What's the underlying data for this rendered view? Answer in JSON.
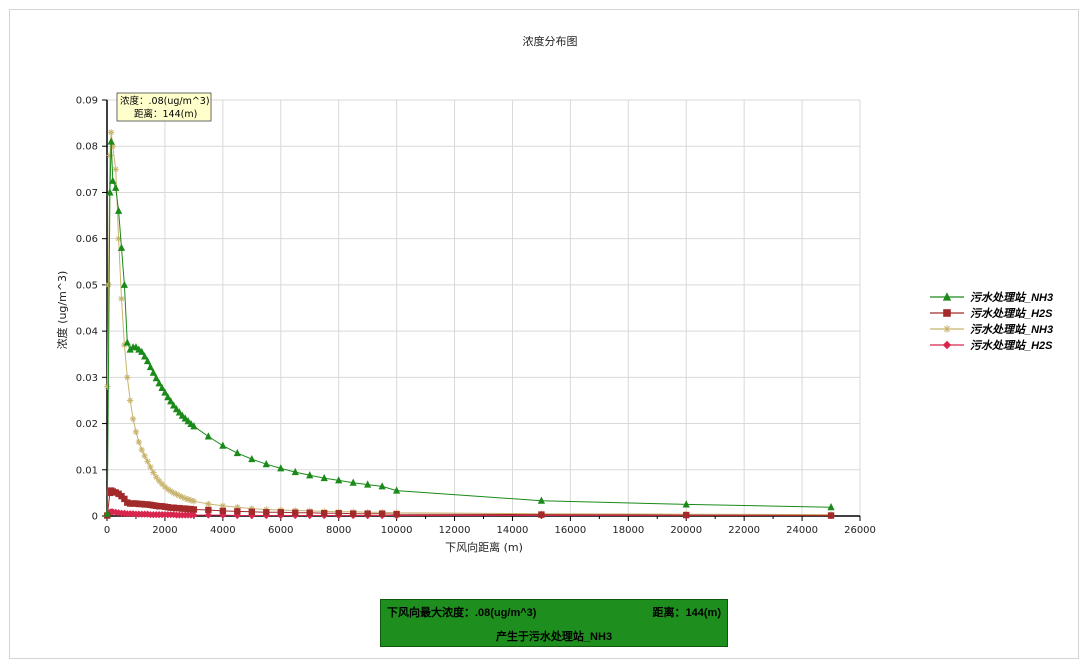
{
  "chart_data": {
    "type": "line",
    "title": "浓度分布图",
    "xlabel": "下风向距离 (m)",
    "ylabel": "浓度 (ug/m^3)",
    "xlim": [
      0,
      26000
    ],
    "ylim": [
      0,
      0.09
    ],
    "xticks": [
      0,
      2000,
      4000,
      6000,
      8000,
      10000,
      12000,
      14000,
      16000,
      18000,
      20000,
      22000,
      24000,
      26000
    ],
    "yticks": [
      0,
      0.01,
      0.02,
      0.03,
      0.04,
      0.05,
      0.06,
      0.07,
      0.08,
      0.09
    ],
    "ytick_labels": [
      "0",
      "0.01",
      "0.02",
      "0.03",
      "0.04",
      "0.05",
      "0.06",
      "0.07",
      "0.08",
      "0.09"
    ],
    "grid": true,
    "legend_position": "right",
    "series": [
      {
        "name": "污水处理站_NH3",
        "color": "#1a8a1a",
        "marker": "triangle",
        "x": [
          10,
          100,
          144,
          200,
          300,
          400,
          500,
          600,
          700,
          800,
          900,
          1000,
          1100,
          1200,
          1300,
          1400,
          1500,
          1600,
          1700,
          1800,
          1900,
          2000,
          2100,
          2200,
          2300,
          2400,
          2500,
          2600,
          2700,
          2800,
          2900,
          3000,
          3500,
          4000,
          4500,
          5000,
          5500,
          6000,
          6500,
          7000,
          7500,
          8000,
          8500,
          9000,
          9500,
          10000,
          15000,
          20000,
          25000
        ],
        "y": [
          0.0005,
          0.07,
          0.081,
          0.0725,
          0.071,
          0.066,
          0.058,
          0.05,
          0.0375,
          0.036,
          0.0365,
          0.0365,
          0.036,
          0.0355,
          0.0345,
          0.0335,
          0.0322,
          0.031,
          0.0298,
          0.0287,
          0.0277,
          0.0267,
          0.0257,
          0.0248,
          0.0239,
          0.0231,
          0.0224,
          0.0217,
          0.0211,
          0.0205,
          0.0199,
          0.0194,
          0.0172,
          0.0152,
          0.0136,
          0.0123,
          0.0112,
          0.0103,
          0.0095,
          0.0088,
          0.0082,
          0.0077,
          0.0072,
          0.0068,
          0.0064,
          0.0055,
          0.0033,
          0.0025,
          0.0019
        ]
      },
      {
        "name": "污水处理站_H2S",
        "color": "#a32a2a",
        "marker": "square",
        "x": [
          10,
          100,
          144,
          200,
          300,
          400,
          500,
          600,
          700,
          800,
          900,
          1000,
          1100,
          1200,
          1300,
          1400,
          1500,
          1600,
          1700,
          1800,
          1900,
          2000,
          2100,
          2200,
          2300,
          2400,
          2500,
          2600,
          2700,
          2800,
          2900,
          3000,
          3500,
          4000,
          4500,
          5000,
          5500,
          6000,
          6500,
          7000,
          7500,
          8000,
          8500,
          9000,
          9500,
          10000,
          15000,
          20000,
          25000
        ],
        "y": [
          0.0001,
          0.005,
          0.0055,
          0.0053,
          0.0051,
          0.0048,
          0.0043,
          0.0037,
          0.0029,
          0.0027,
          0.0027,
          0.0027,
          0.0026,
          0.0026,
          0.0025,
          0.0025,
          0.0024,
          0.0023,
          0.0022,
          0.0021,
          0.0021,
          0.002,
          0.0019,
          0.0018,
          0.0018,
          0.0017,
          0.0017,
          0.0016,
          0.0016,
          0.0015,
          0.0015,
          0.0014,
          0.0013,
          0.0011,
          0.001,
          0.0009,
          0.0008,
          0.0008,
          0.0007,
          0.0007,
          0.0006,
          0.0006,
          0.0005,
          0.0005,
          0.0005,
          0.0004,
          0.0003,
          0.0002,
          0.0001
        ]
      },
      {
        "name": "污水处理站_NH3",
        "color": "#c8b46e",
        "marker": "asterisk",
        "x": [
          10,
          50,
          100,
          144,
          200,
          300,
          400,
          500,
          600,
          700,
          800,
          900,
          1000,
          1100,
          1200,
          1300,
          1400,
          1500,
          1600,
          1700,
          1800,
          1900,
          2000,
          2100,
          2200,
          2300,
          2400,
          2500,
          2600,
          2700,
          2800,
          2900,
          3000,
          3500,
          4000,
          4500,
          5000,
          5500,
          6000,
          6500,
          7000,
          7500,
          8000,
          8500,
          9000,
          9500,
          10000,
          15000,
          20000,
          25000
        ],
        "y": [
          0.028,
          0.05,
          0.078,
          0.083,
          0.08,
          0.075,
          0.06,
          0.047,
          0.037,
          0.03,
          0.025,
          0.021,
          0.0182,
          0.016,
          0.0143,
          0.013,
          0.0118,
          0.0106,
          0.0094,
          0.0084,
          0.0076,
          0.0069,
          0.0063,
          0.0058,
          0.0054,
          0.005,
          0.0047,
          0.0044,
          0.0041,
          0.0038,
          0.0036,
          0.0034,
          0.0032,
          0.0026,
          0.0022,
          0.0019,
          0.0016,
          0.0014,
          0.0013,
          0.0012,
          0.0011,
          0.001,
          0.0009,
          0.0009,
          0.0008,
          0.0008,
          0.0007,
          0.0005,
          0.0004,
          0.0003
        ]
      },
      {
        "name": "污水处理站_H2S",
        "color": "#d9264f",
        "marker": "diamond",
        "x": [
          10,
          50,
          100,
          144,
          200,
          300,
          400,
          500,
          600,
          700,
          800,
          900,
          1000,
          1100,
          1200,
          1300,
          1400,
          1500,
          1600,
          1700,
          1800,
          1900,
          2000,
          2100,
          2200,
          2300,
          2400,
          2500,
          2600,
          2700,
          2800,
          2900,
          3000,
          3500,
          4000,
          4500,
          5000,
          5500,
          6000,
          6500,
          7000,
          7500,
          8000,
          8500,
          9000,
          9500,
          10000,
          15000,
          20000,
          25000
        ],
        "y": [
          0.0002,
          0.0005,
          0.0008,
          0.0009,
          0.0009,
          0.0008,
          0.0007,
          0.0006,
          0.0006,
          0.0005,
          0.0005,
          0.0005,
          0.0004,
          0.0004,
          0.0004,
          0.0004,
          0.0004,
          0.0003,
          0.0003,
          0.0003,
          0.0003,
          0.0003,
          0.0003,
          0.0003,
          0.0003,
          0.0003,
          0.0002,
          0.0002,
          0.0002,
          0.0002,
          0.0002,
          0.0002,
          0.0002,
          0.0002,
          0.0002,
          0.0001,
          0.0001,
          0.0001,
          0.0001,
          0.0001,
          0.0001,
          0.0001,
          0.0001,
          0.0001,
          0.0001,
          0.0001,
          0.0001,
          0.0001,
          0.0001,
          0.0001
        ]
      }
    ],
    "annotation": {
      "x": 144,
      "y": 0.083,
      "line1": "浓度：.08(ug/m^3)",
      "line2": "距离：144(m)"
    }
  },
  "summary": {
    "max_label": "下风向最大浓度：.08(ug/m^3)",
    "distance_label": "距离：144(m)",
    "source_label": "产生于污水处理站_NH3",
    "background": "#1e8f1e"
  }
}
